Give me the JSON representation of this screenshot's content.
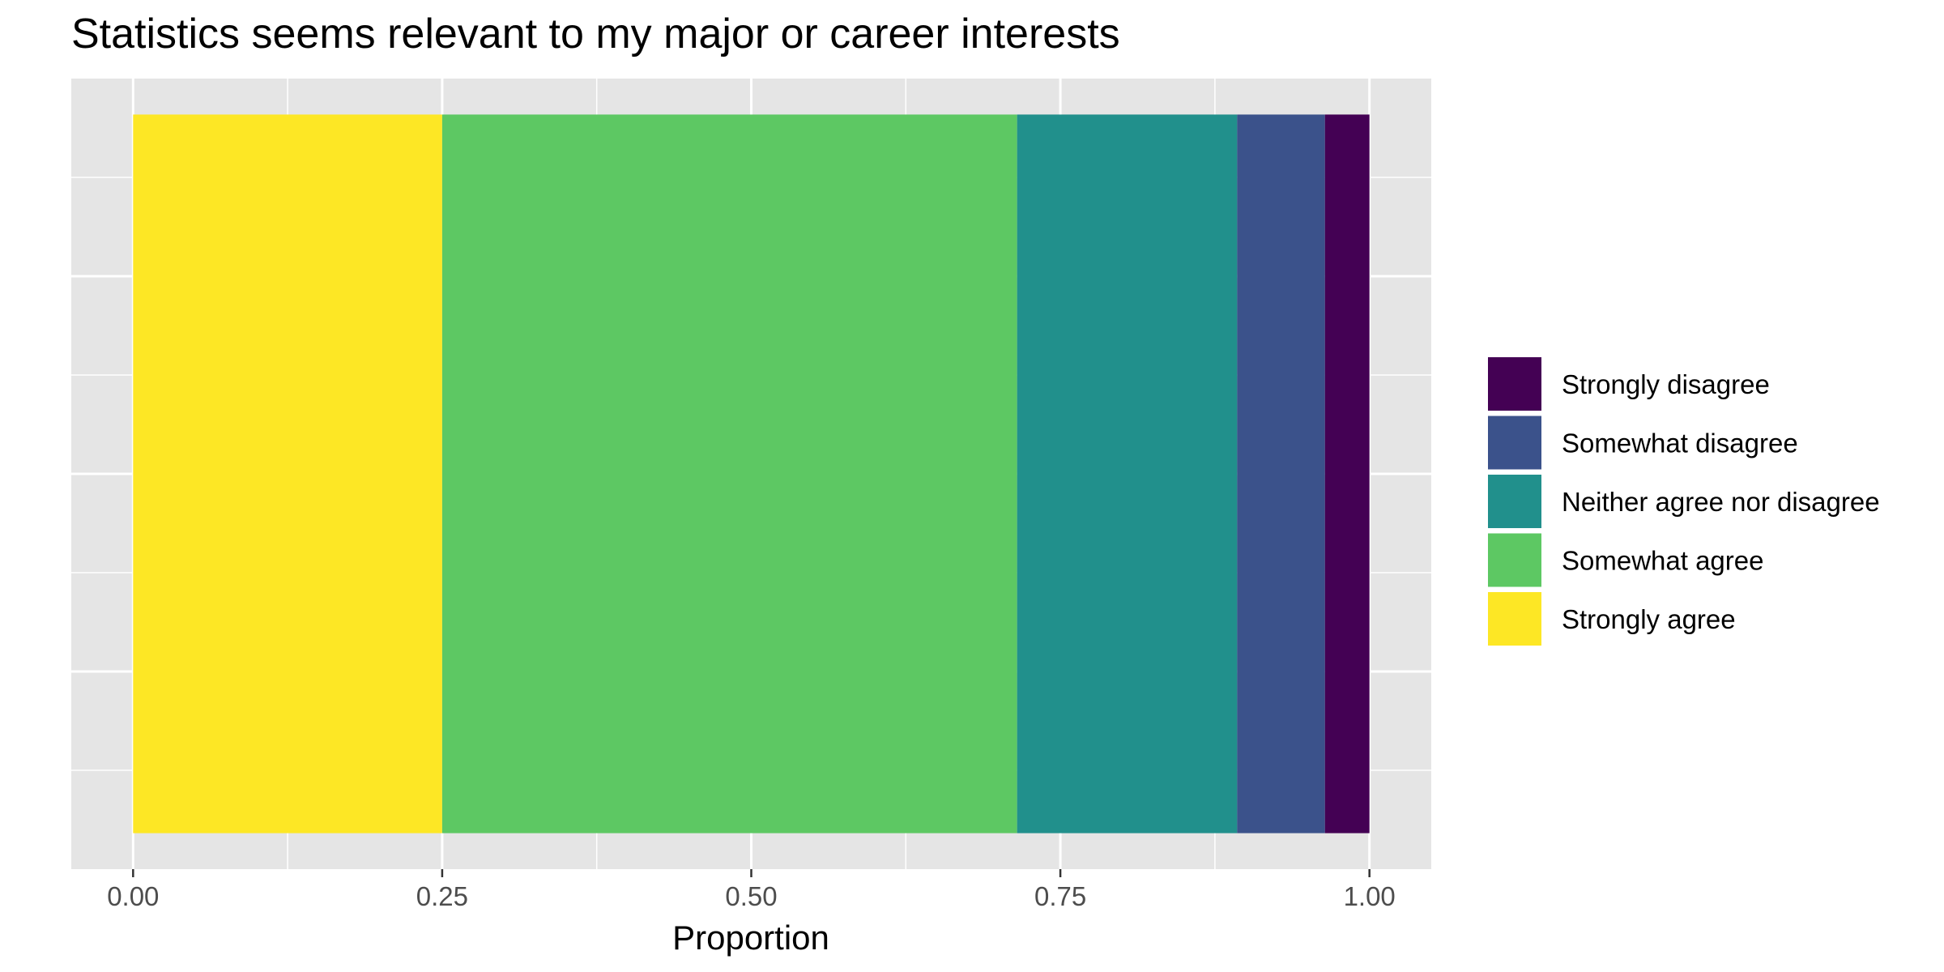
{
  "chart_data": {
    "type": "bar",
    "orientation": "horizontal",
    "stacked": true,
    "title": "Statistics seems relevant to my major or career interests",
    "xlabel": "Proportion",
    "ylabel": "",
    "xlim": [
      -0.05,
      1.05
    ],
    "xticks": [
      0,
      0.25,
      0.5,
      0.75,
      1.0
    ],
    "xtick_labels": [
      "0.00",
      "0.25",
      "0.50",
      "0.75",
      "1.00"
    ],
    "grid": true,
    "legend_position": "right",
    "series": [
      {
        "name": "Strongly agree",
        "value": 0.25,
        "color": "#FDE725"
      },
      {
        "name": "Somewhat agree",
        "value": 0.465,
        "color": "#5DC863"
      },
      {
        "name": "Neither agree nor disagree",
        "value": 0.178,
        "color": "#21908C"
      },
      {
        "name": "Somewhat disagree",
        "value": 0.071,
        "color": "#3B528B"
      },
      {
        "name": "Strongly disagree",
        "value": 0.036,
        "color": "#440154"
      }
    ],
    "legend_order": [
      "Strongly disagree",
      "Somewhat disagree",
      "Neither agree nor disagree",
      "Somewhat agree",
      "Strongly agree"
    ]
  }
}
